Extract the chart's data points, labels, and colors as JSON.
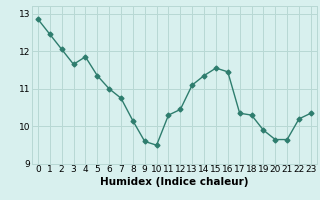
{
  "x": [
    0,
    1,
    2,
    3,
    4,
    5,
    6,
    7,
    8,
    9,
    10,
    11,
    12,
    13,
    14,
    15,
    16,
    17,
    18,
    19,
    20,
    21,
    22,
    23
  ],
  "y": [
    12.85,
    12.45,
    12.05,
    11.65,
    11.85,
    11.35,
    11.0,
    10.75,
    10.15,
    9.6,
    9.5,
    10.3,
    10.45,
    11.1,
    11.35,
    11.55,
    11.45,
    10.35,
    10.3,
    9.9,
    9.65,
    9.65,
    10.2,
    10.35
  ],
  "line_color": "#2e7d6e",
  "marker": "D",
  "markersize": 2.5,
  "linewidth": 1.0,
  "bg_color": "#d8f0ee",
  "grid_color": "#b8d8d4",
  "xlabel": "Humidex (Indice chaleur)",
  "xlabel_fontsize": 7.5,
  "xlim": [
    -0.5,
    23.5
  ],
  "ylim": [
    9.0,
    13.2
  ],
  "yticks": [
    9,
    10,
    11,
    12,
    13
  ],
  "xticks": [
    0,
    1,
    2,
    3,
    4,
    5,
    6,
    7,
    8,
    9,
    10,
    11,
    12,
    13,
    14,
    15,
    16,
    17,
    18,
    19,
    20,
    21,
    22,
    23
  ],
  "tick_fontsize": 6.5
}
